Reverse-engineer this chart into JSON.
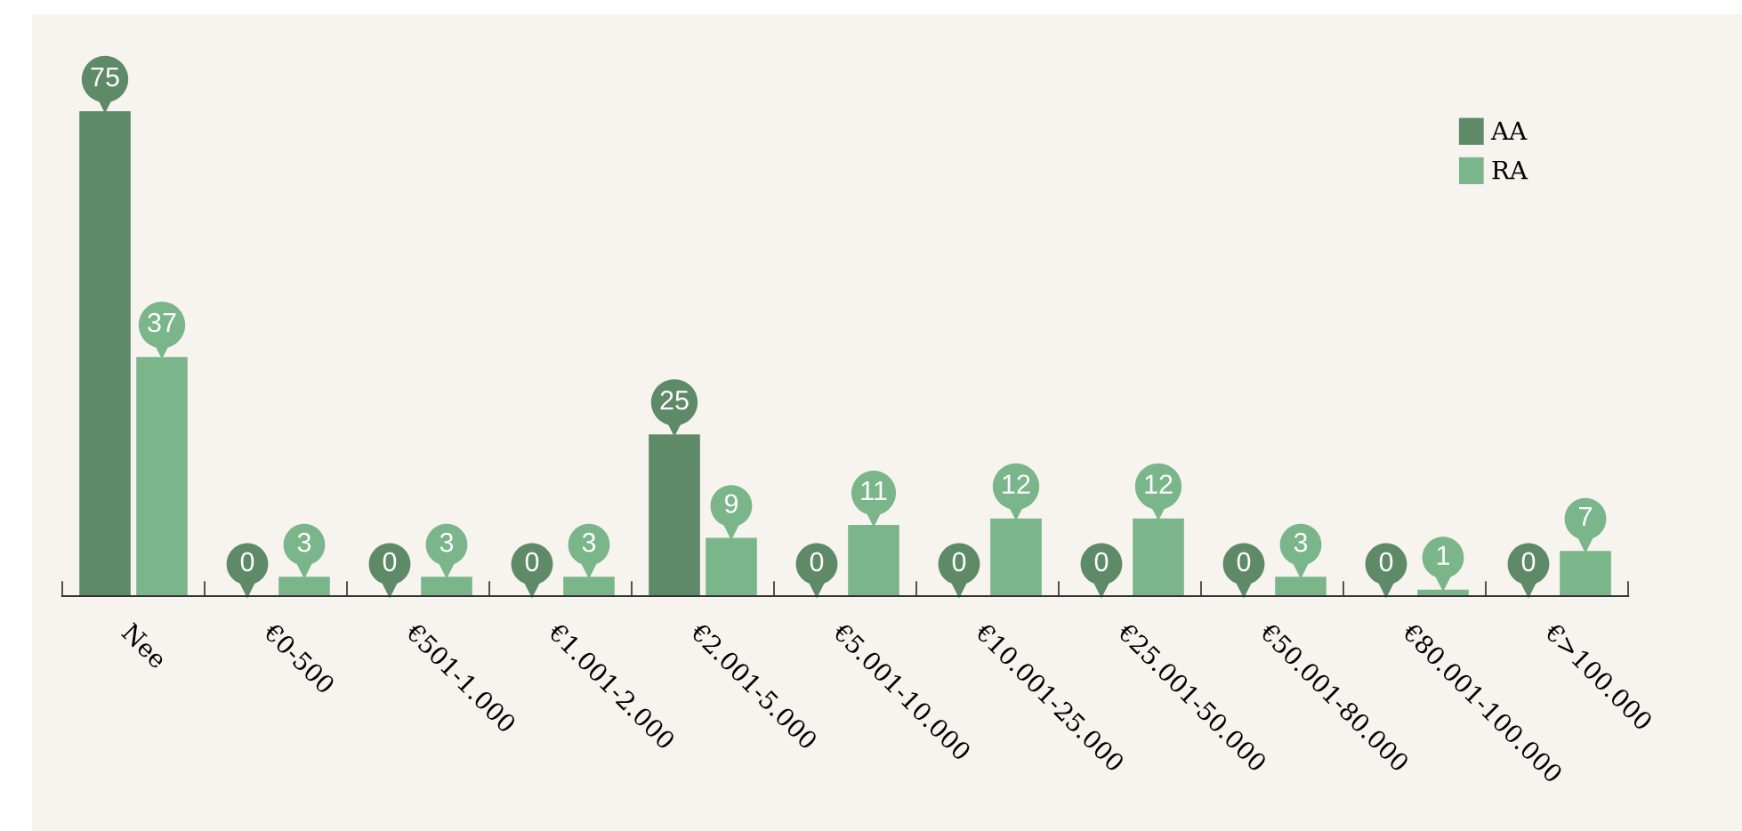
{
  "chart_data": {
    "type": "bar",
    "categories": [
      "Nee",
      "€0-500",
      "€501-1.000",
      "€1.001-2.000",
      "€2.001-5.000",
      "€5.001-10.000",
      "€10.001-25.000",
      "€25.001-50.000",
      "€50.001-80.000",
      "€80.001-100.000",
      "€>100.000"
    ],
    "series": [
      {
        "name": "AA",
        "color": "#5e8a68",
        "values": [
          75,
          0,
          0,
          0,
          25,
          0,
          0,
          0,
          0,
          0,
          0
        ]
      },
      {
        "name": "RA",
        "color": "#7ab68a",
        "values": [
          37,
          3,
          3,
          3,
          9,
          11,
          12,
          12,
          3,
          1,
          7
        ]
      }
    ],
    "ylim": [
      0,
      90
    ],
    "tick_labels": "x",
    "data_labels": true,
    "legend": "top right",
    "grid": false
  }
}
